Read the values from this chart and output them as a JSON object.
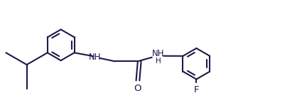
{
  "bg_color": "#ffffff",
  "line_color": "#1a1a4a",
  "bond_width": 1.5,
  "fig_width": 4.25,
  "fig_height": 1.52,
  "dpi": 100,
  "font_size_NH": 8.5,
  "font_size_O": 9.5,
  "font_size_F": 9.5,
  "xlim": [
    0,
    10.5
  ],
  "ylim": [
    0.2,
    4.0
  ]
}
